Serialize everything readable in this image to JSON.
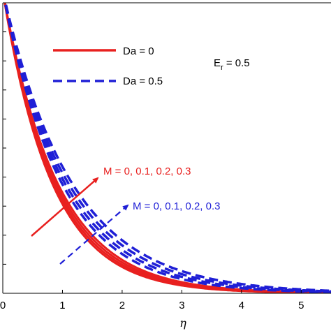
{
  "chart_data": {
    "type": "line",
    "title": "",
    "xlabel": "η",
    "ylabel": "",
    "xlim": [
      0,
      5.5
    ],
    "ylim": [
      0,
      1
    ],
    "grid": false,
    "legend_position": "top-left",
    "x_ticks": [
      "0",
      "1",
      "2",
      "3",
      "4",
      "5"
    ],
    "annotation_er": {
      "base": "E",
      "sub": "r",
      "value": " = 0.5"
    },
    "annotation_m_red": "M = 0, 0.1, 0.2, 0.3",
    "annotation_m_blue": "M = 0, 0.1, 0.2, 0.3",
    "colors": {
      "da0": "#e8201f",
      "da05": "#1f1fd6"
    },
    "series": [
      {
        "name": "Da = 0",
        "group": "da0",
        "M": 0,
        "decay": 1.22,
        "style": "solid"
      },
      {
        "name": "",
        "group": "da0",
        "M": 0.1,
        "decay": 1.18,
        "style": "solid"
      },
      {
        "name": "",
        "group": "da0",
        "M": 0.2,
        "decay": 1.14,
        "style": "solid"
      },
      {
        "name": "",
        "group": "da0",
        "M": 0.3,
        "decay": 1.1,
        "style": "solid"
      },
      {
        "name": "Da = 0.5",
        "group": "da05",
        "M": 0,
        "decay": 1.02,
        "style": "dashed"
      },
      {
        "name": "",
        "group": "da05",
        "M": 0.1,
        "decay": 0.97,
        "style": "dashed"
      },
      {
        "name": "",
        "group": "da05",
        "M": 0.2,
        "decay": 0.92,
        "style": "dashed"
      },
      {
        "name": "",
        "group": "da05",
        "M": 0.3,
        "decay": 0.87,
        "style": "dashed"
      }
    ]
  }
}
